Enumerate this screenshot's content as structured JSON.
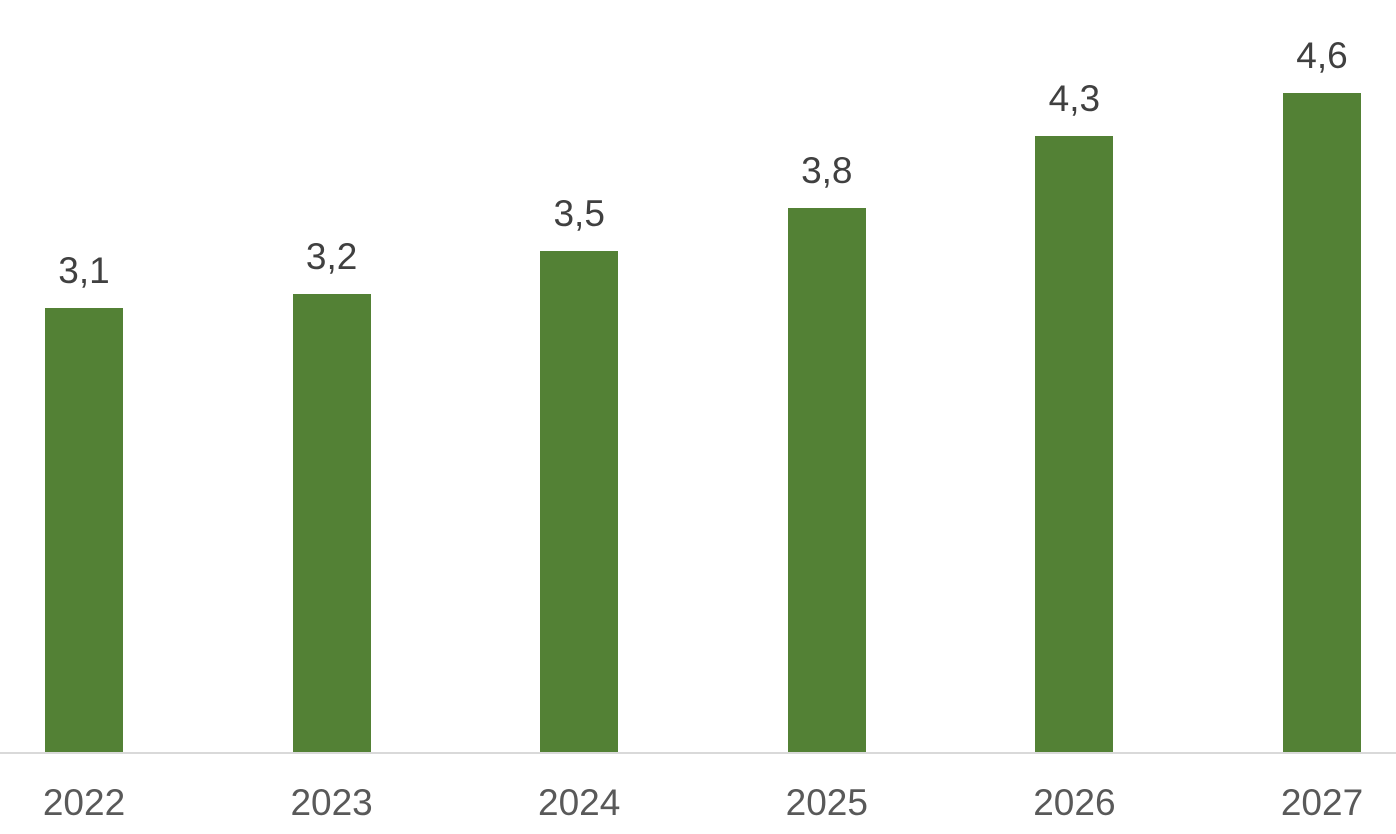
{
  "chart_data": {
    "type": "bar",
    "title": "",
    "xlabel": "",
    "ylabel": "",
    "categories": [
      "2022",
      "2023",
      "2024",
      "2025",
      "2026",
      "2027"
    ],
    "values": [
      3.1,
      3.2,
      3.5,
      3.8,
      4.3,
      4.6
    ],
    "value_labels": [
      "3,1",
      "3,2",
      "3,5",
      "3,8",
      "4,3",
      "4,6"
    ],
    "decimal_separator": ",",
    "ylim": [
      0,
      5.25
    ],
    "grid": false,
    "legend": false,
    "colors": {
      "bar": "#538135",
      "value_label": "#404040",
      "axis_label": "#595959",
      "axis_line": "#d9d9d9",
      "background": "#ffffff"
    }
  }
}
